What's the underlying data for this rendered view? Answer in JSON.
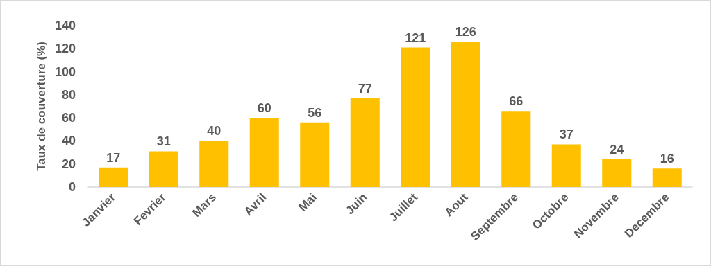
{
  "chart_data": {
    "type": "bar",
    "ylabel": "Taux de couverture (%)",
    "categories": [
      "Janvier",
      "Fevrier",
      "Mars",
      "Avril",
      "Mai",
      "Juin",
      "Juillet",
      "Aout",
      "Septembre",
      "Octobre",
      "Novembre",
      "Decembre"
    ],
    "values": [
      17,
      31,
      40,
      60,
      56,
      77,
      121,
      126,
      66,
      37,
      24,
      16
    ],
    "color": "#ffc000",
    "ylim": [
      0,
      140
    ],
    "yticks": [
      0,
      20,
      40,
      60,
      80,
      100,
      120,
      140
    ],
    "grid": false,
    "data_labels": true
  }
}
